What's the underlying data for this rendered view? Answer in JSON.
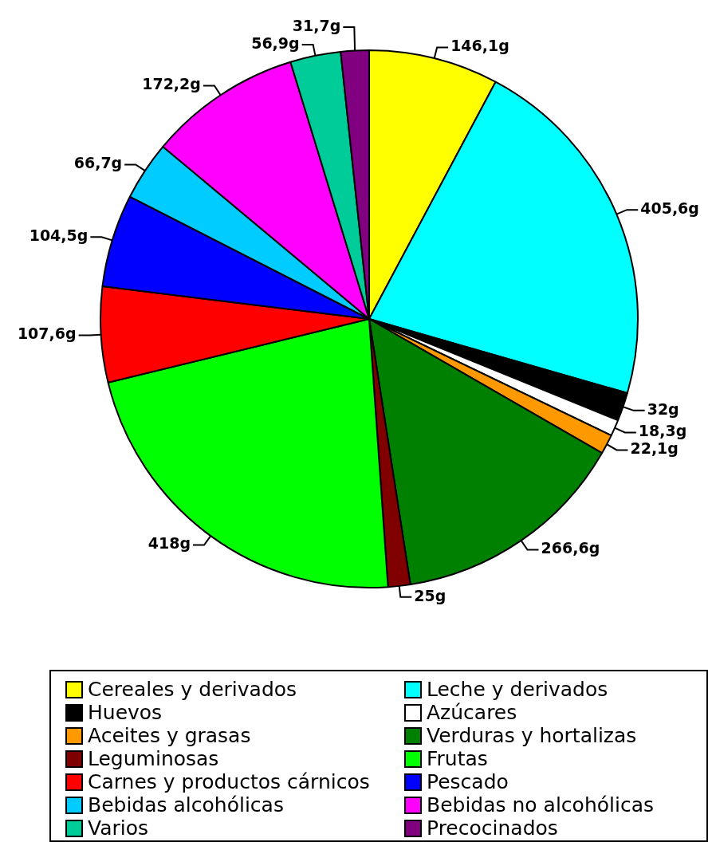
{
  "chart_data": {
    "type": "pie",
    "categories": [
      "Cereales y derivados",
      "Leche y derivados",
      "Huevos",
      "Azúcares",
      "Aceites y grasas",
      "Verduras y hortalizas",
      "Leguminosas",
      "Frutas",
      "Carnes y productos cárnicos",
      "Pescado",
      "Bebidas alcohólicas",
      "Bebidas no alcohólicas",
      "Varios",
      "Precocinados"
    ],
    "values": [
      146.1,
      405.6,
      32,
      18.3,
      22.1,
      266.6,
      25,
      418,
      107.6,
      104.5,
      66.7,
      172.2,
      56.9,
      31.7
    ],
    "colors": [
      "#ffff00",
      "#00ffff",
      "#000000",
      "#ffffff",
      "#ff9900",
      "#008000",
      "#800000",
      "#00ff00",
      "#ff0000",
      "#0000ff",
      "#00ccff",
      "#ff00ff",
      "#00cc99",
      "#800080"
    ],
    "value_labels": [
      "146,1g",
      "405,6g",
      "32g",
      "18,3g",
      "22,1g",
      "266,6g",
      "25g",
      "418g",
      "107,6g",
      "104,5g",
      "66,7g",
      "172,2g",
      "56,9g",
      "31,7g"
    ],
    "legend": "bottom"
  }
}
